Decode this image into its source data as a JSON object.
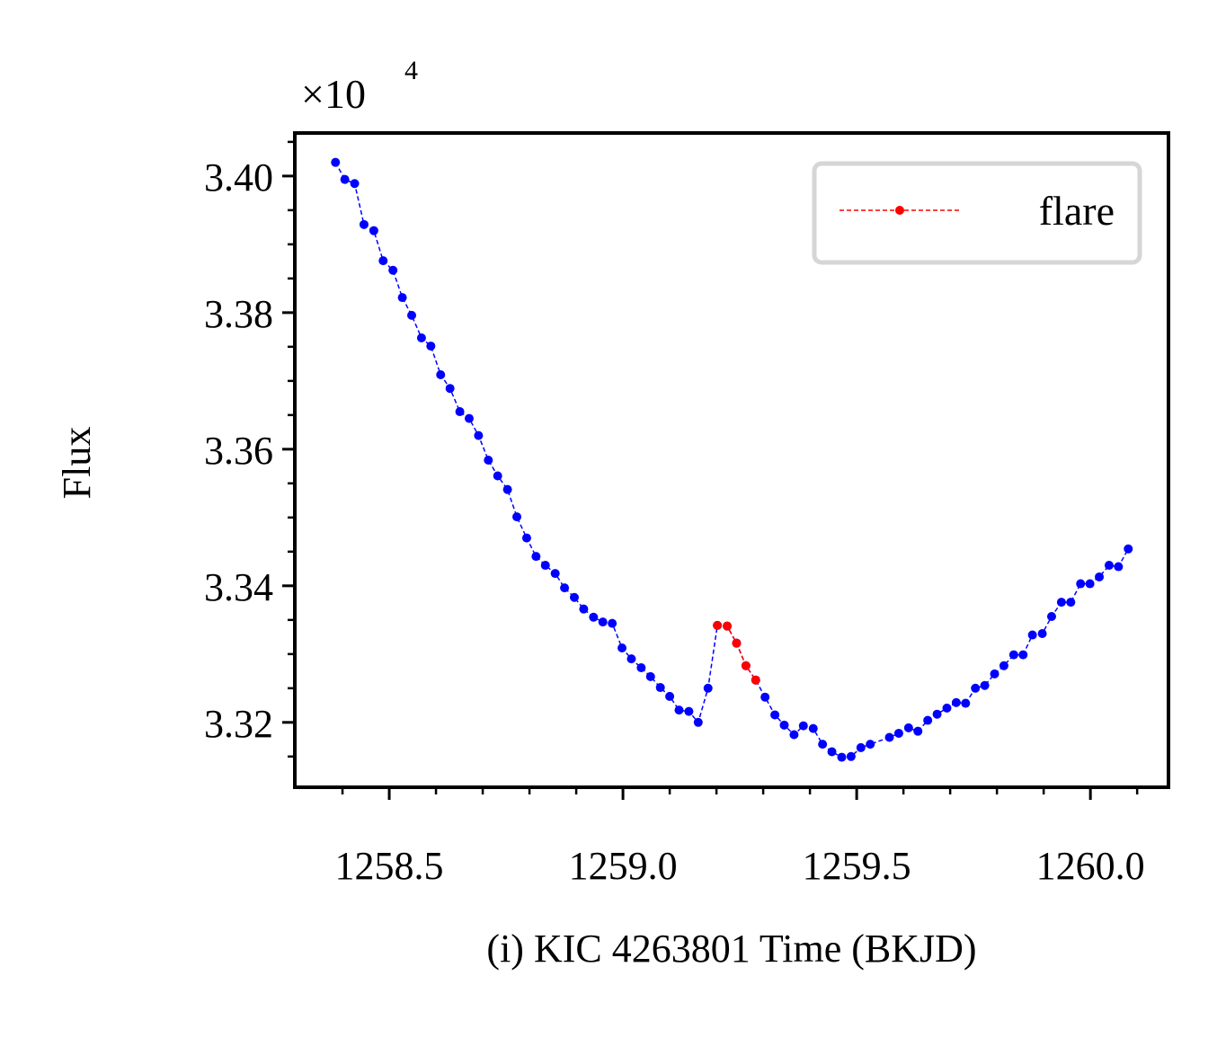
{
  "chart_data": {
    "type": "line",
    "x_label": "(i) KIC 4263801 Time (BKJD)",
    "y_label": "Flux",
    "y_offset_text": "×10",
    "y_offset_exponent": "4",
    "x": [
      1258.385,
      1258.405,
      1258.426,
      1258.446,
      1258.467,
      1258.487,
      1258.508,
      1258.528,
      1258.548,
      1258.569,
      1258.589,
      1258.61,
      1258.63,
      1258.651,
      1258.671,
      1258.691,
      1258.712,
      1258.732,
      1258.753,
      1258.773,
      1258.794,
      1258.814,
      1258.834,
      1258.855,
      1258.875,
      1258.896,
      1258.916,
      1258.937,
      1258.957,
      1258.977,
      1258.998,
      1259.018,
      1259.039,
      1259.059,
      1259.08,
      1259.1,
      1259.12,
      1259.141,
      1259.161,
      1259.182,
      1259.202,
      1259.223,
      1259.243,
      1259.263,
      1259.284,
      1259.304,
      1259.325,
      1259.345,
      1259.366,
      1259.386,
      1259.407,
      1259.427,
      1259.447,
      1259.468,
      1259.488,
      1259.509,
      1259.529,
      1259.57,
      1259.59,
      1259.611,
      1259.631,
      1259.652,
      1259.672,
      1259.693,
      1259.713,
      1259.733,
      1259.754,
      1259.774,
      1259.795,
      1259.815,
      1259.836,
      1259.856,
      1259.876,
      1259.897,
      1259.917,
      1259.938,
      1259.958,
      1259.979,
      1259.999,
      1260.019,
      1260.04,
      1260.06,
      1260.081
    ],
    "series": [
      {
        "color": "#0000ff",
        "values": [
          34020,
          33995,
          33989,
          33929,
          33920,
          33876,
          33862,
          33822,
          33796,
          33763,
          33751,
          33709,
          33689,
          33655,
          33645,
          33620,
          33584,
          33561,
          33541,
          33501,
          33470,
          33443,
          33430,
          33418,
          33397,
          33383,
          33366,
          33354,
          33347,
          33345,
          33309,
          33293,
          33280,
          33267,
          33251,
          33238,
          33218,
          33216,
          33200,
          33250,
          33342,
          33341,
          33316,
          33283,
          33262,
          33237,
          33211,
          33196,
          33182,
          33195,
          33191,
          33168,
          33157,
          33149,
          33150,
          33163,
          33168,
          33178,
          33184,
          33192,
          33187,
          33203,
          33212,
          33221,
          33229,
          33228,
          33250,
          33254,
          33271,
          33283,
          33299,
          33299,
          33328,
          33330,
          33355,
          33376,
          33376,
          33403,
          33403,
          33413,
          33430,
          33428,
          33454
        ]
      },
      {
        "name": "flare",
        "color": "#ff0000",
        "values": [
          null,
          null,
          null,
          null,
          null,
          null,
          null,
          null,
          null,
          null,
          null,
          null,
          null,
          null,
          null,
          null,
          null,
          null,
          null,
          null,
          null,
          null,
          null,
          null,
          null,
          null,
          null,
          null,
          null,
          null,
          null,
          null,
          null,
          null,
          null,
          null,
          null,
          null,
          null,
          null,
          33342,
          33341,
          33316,
          33283,
          33262,
          null,
          null,
          null,
          null,
          null,
          null,
          null,
          null,
          null,
          null,
          null,
          null,
          null,
          null,
          null,
          null,
          null,
          null,
          null,
          null,
          null,
          null,
          null,
          null,
          null,
          null,
          null,
          null,
          null,
          null,
          null,
          null,
          null,
          null,
          null,
          null,
          null,
          null
        ]
      }
    ],
    "xlim": [
      1258.298,
      1260.167
    ],
    "ylim": [
      33105,
      34063
    ],
    "xticks": [
      {
        "value": 1258.5,
        "label": "1258.5"
      },
      {
        "value": 1259,
        "label": "1259.0"
      },
      {
        "value": 1259.5,
        "label": "1259.5"
      },
      {
        "value": 1260,
        "label": "1260.0"
      }
    ],
    "yticks": [
      {
        "value": 33200,
        "label": "3.32"
      },
      {
        "value": 33400,
        "label": "3.34"
      },
      {
        "value": 33600,
        "label": "3.36"
      },
      {
        "value": 33800,
        "label": "3.38"
      },
      {
        "value": 34000,
        "label": "3.40"
      }
    ],
    "xminor_ticks": [
      1258.4,
      1258.6,
      1258.7,
      1258.8,
      1258.9,
      1259.1,
      1259.2,
      1259.3,
      1259.4,
      1259.6,
      1259.7,
      1259.8,
      1259.9,
      1260.1
    ],
    "yminor_ticks": [
      33150,
      33250,
      33300,
      33350,
      33450,
      33500,
      33550,
      33650,
      33700,
      33750,
      33850,
      33900,
      33950,
      34050
    ],
    "legend": "upper right",
    "grid": false
  }
}
